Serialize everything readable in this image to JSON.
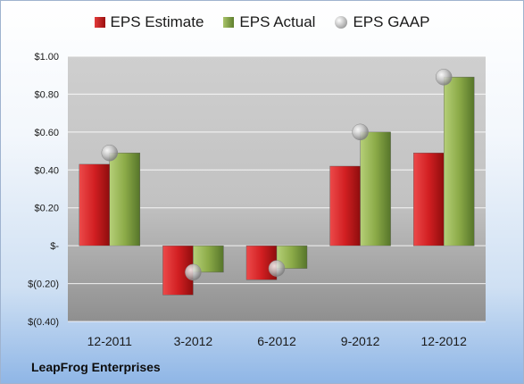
{
  "company": "LeapFrog Enterprises",
  "chart_data": {
    "type": "bar",
    "categories": [
      "12-2011",
      "3-2012",
      "6-2012",
      "9-2012",
      "12-2012"
    ],
    "series": [
      {
        "name": "EPS Estimate",
        "kind": "bar",
        "color": "#c8171b",
        "values": [
          0.43,
          -0.26,
          -0.18,
          0.42,
          0.49
        ]
      },
      {
        "name": "EPS Actual",
        "kind": "bar",
        "color": "#7d9a3c",
        "values": [
          0.49,
          -0.14,
          -0.12,
          0.6,
          0.89
        ]
      },
      {
        "name": "EPS GAAP",
        "kind": "marker",
        "color": "#a8a8a8",
        "values": [
          0.49,
          -0.14,
          -0.12,
          0.6,
          0.89
        ]
      }
    ],
    "ylim": [
      -0.4,
      1.0
    ],
    "yticks": [
      1.0,
      0.8,
      0.6,
      0.4,
      0.2,
      0,
      -0.2,
      -0.4
    ],
    "ytick_labels": [
      "$1.00",
      "$0.80",
      "$0.60",
      "$0.40",
      "$0.20",
      "$-",
      "$(0.20)",
      "$(0.40)"
    ],
    "grid": true,
    "legend_position": "top"
  }
}
